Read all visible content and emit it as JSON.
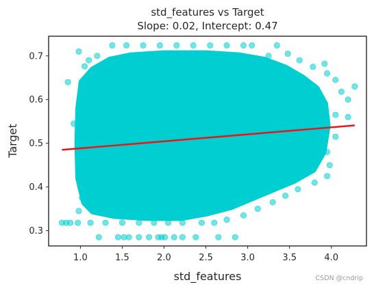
{
  "chart_data": {
    "type": "scatter",
    "title": "std_features vs Target",
    "subtitle": "Slope: 0.02, Intercept: 0.47",
    "xlabel": "std_features",
    "ylabel": "Target",
    "xlim": [
      0.62,
      4.42
    ],
    "ylim": [
      0.265,
      0.745
    ],
    "xticks": [
      1.0,
      1.5,
      2.0,
      2.5,
      3.0,
      3.5,
      4.0
    ],
    "xtick_labels": [
      "1.0",
      "1.5",
      "2.0",
      "2.5",
      "3.0",
      "3.5",
      "4.0"
    ],
    "yticks": [
      0.3,
      0.4,
      0.5,
      0.6,
      0.7
    ],
    "ytick_labels": [
      "0.3",
      "0.4",
      "0.5",
      "0.6",
      "0.7"
    ],
    "grid": false,
    "point_color": "#00CED1",
    "line_color": "#E31A1C",
    "regression_line": {
      "slope": 0.016,
      "intercept": 0.4725,
      "x_start": 0.78,
      "x_end": 4.28
    },
    "points": [
      {
        "x": 0.78,
        "y": 0.318
      },
      {
        "x": 0.83,
        "y": 0.318
      },
      {
        "x": 0.88,
        "y": 0.318
      },
      {
        "x": 0.97,
        "y": 0.318
      },
      {
        "x": 0.85,
        "y": 0.64
      },
      {
        "x": 0.98,
        "y": 0.71
      },
      {
        "x": 1.05,
        "y": 0.676
      },
      {
        "x": 0.92,
        "y": 0.545
      },
      {
        "x": 1.0,
        "y": 0.415
      },
      {
        "x": 1.02,
        "y": 0.375
      },
      {
        "x": 0.98,
        "y": 0.345
      },
      {
        "x": 1.05,
        "y": 0.462
      },
      {
        "x": 1.1,
        "y": 0.69
      },
      {
        "x": 1.2,
        "y": 0.7
      },
      {
        "x": 1.38,
        "y": 0.724
      },
      {
        "x": 1.55,
        "y": 0.724
      },
      {
        "x": 1.75,
        "y": 0.724
      },
      {
        "x": 1.95,
        "y": 0.724
      },
      {
        "x": 2.15,
        "y": 0.724
      },
      {
        "x": 2.35,
        "y": 0.724
      },
      {
        "x": 2.55,
        "y": 0.724
      },
      {
        "x": 2.75,
        "y": 0.724
      },
      {
        "x": 2.95,
        "y": 0.724
      },
      {
        "x": 3.05,
        "y": 0.724
      },
      {
        "x": 3.35,
        "y": 0.724
      },
      {
        "x": 3.25,
        "y": 0.7
      },
      {
        "x": 3.48,
        "y": 0.705
      },
      {
        "x": 3.62,
        "y": 0.69
      },
      {
        "x": 3.78,
        "y": 0.675
      },
      {
        "x": 3.92,
        "y": 0.682
      },
      {
        "x": 3.95,
        "y": 0.66
      },
      {
        "x": 4.05,
        "y": 0.645
      },
      {
        "x": 4.12,
        "y": 0.618
      },
      {
        "x": 4.2,
        "y": 0.6
      },
      {
        "x": 4.28,
        "y": 0.63
      },
      {
        "x": 4.05,
        "y": 0.565
      },
      {
        "x": 4.2,
        "y": 0.56
      },
      {
        "x": 4.05,
        "y": 0.515
      },
      {
        "x": 3.95,
        "y": 0.48
      },
      {
        "x": 3.98,
        "y": 0.45
      },
      {
        "x": 3.95,
        "y": 0.425
      },
      {
        "x": 3.8,
        "y": 0.41
      },
      {
        "x": 3.6,
        "y": 0.395
      },
      {
        "x": 3.45,
        "y": 0.38
      },
      {
        "x": 3.3,
        "y": 0.365
      },
      {
        "x": 3.12,
        "y": 0.35
      },
      {
        "x": 2.95,
        "y": 0.335
      },
      {
        "x": 2.75,
        "y": 0.325
      },
      {
        "x": 2.6,
        "y": 0.318
      },
      {
        "x": 2.45,
        "y": 0.318
      },
      {
        "x": 2.22,
        "y": 0.318
      },
      {
        "x": 2.05,
        "y": 0.318
      },
      {
        "x": 1.88,
        "y": 0.318
      },
      {
        "x": 1.7,
        "y": 0.318
      },
      {
        "x": 1.5,
        "y": 0.318
      },
      {
        "x": 1.3,
        "y": 0.318
      },
      {
        "x": 1.12,
        "y": 0.318
      },
      {
        "x": 1.22,
        "y": 0.285
      },
      {
        "x": 1.45,
        "y": 0.285
      },
      {
        "x": 1.52,
        "y": 0.285
      },
      {
        "x": 1.58,
        "y": 0.285
      },
      {
        "x": 1.7,
        "y": 0.285
      },
      {
        "x": 1.82,
        "y": 0.285
      },
      {
        "x": 1.93,
        "y": 0.285
      },
      {
        "x": 1.97,
        "y": 0.285
      },
      {
        "x": 2.01,
        "y": 0.285
      },
      {
        "x": 2.12,
        "y": 0.285
      },
      {
        "x": 2.22,
        "y": 0.285
      },
      {
        "x": 2.38,
        "y": 0.285
      },
      {
        "x": 2.65,
        "y": 0.285
      },
      {
        "x": 2.85,
        "y": 0.285
      },
      {
        "x": 1.4,
        "y": 0.6
      },
      {
        "x": 1.8,
        "y": 0.55
      },
      {
        "x": 2.2,
        "y": 0.5
      },
      {
        "x": 2.6,
        "y": 0.52
      },
      {
        "x": 3.0,
        "y": 0.56
      },
      {
        "x": 3.4,
        "y": 0.53
      },
      {
        "x": 1.6,
        "y": 0.42
      },
      {
        "x": 2.4,
        "y": 0.42
      },
      {
        "x": 3.2,
        "y": 0.45
      },
      {
        "x": 1.3,
        "y": 0.48
      },
      {
        "x": 2.0,
        "y": 0.65
      },
      {
        "x": 2.8,
        "y": 0.64
      },
      {
        "x": 3.6,
        "y": 0.6
      },
      {
        "x": 1.1,
        "y": 0.56
      },
      {
        "x": 1.9,
        "y": 0.38
      },
      {
        "x": 2.9,
        "y": 0.4
      },
      {
        "x": 3.7,
        "y": 0.48
      },
      {
        "x": 1.5,
        "y": 0.68
      },
      {
        "x": 2.5,
        "y": 0.69
      },
      {
        "x": 3.1,
        "y": 0.68
      }
    ]
  },
  "watermark": "CSDN @cndrip"
}
